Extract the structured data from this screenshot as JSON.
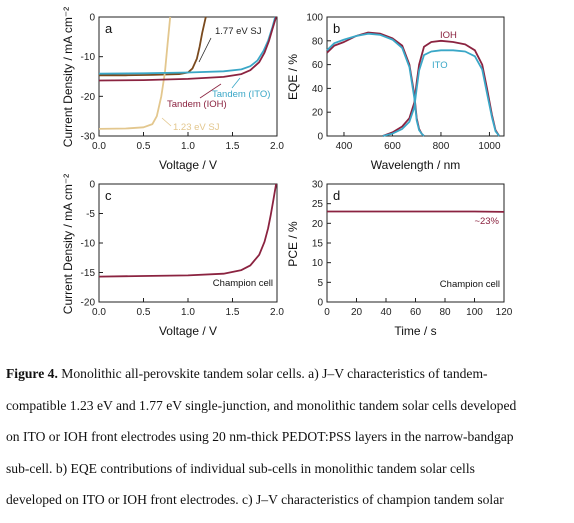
{
  "figure": {
    "caption_label": "Figure 4.",
    "caption_lines": [
      "Monolithic all-perovskite tandem solar cells. a) J–V characteristics of tandem-",
      "compatible 1.23 eV and 1.77 eV single-junction, and monolithic tandem solar cells developed",
      "on ITO or IOH front electrodes using 20 nm-thick PEDOT:PSS layers in the narrow-bandgap",
      "sub-cell. b) EQE contributions of individual sub-cells in monolithic tandem solar cells",
      "developed on ITO or IOH front electrodes. c) J–V characteristics of champion tandem solar"
    ]
  },
  "colors": {
    "ioh": "#8b2340",
    "ito": "#3aa7c7",
    "sj177": "#7a4a1e",
    "sj123": "#e3c78e",
    "axis": "#222222"
  },
  "chart_data": [
    {
      "panel": "a",
      "type": "line",
      "xlabel": "Voltage / V",
      "ylabel": "Current Density / mA cm⁻²",
      "xlim": [
        0,
        2
      ],
      "ylim": [
        -30,
        0
      ],
      "xticks": [
        "0.0",
        "0.5",
        "1.0",
        "1.5",
        "2.0"
      ],
      "yticks": [
        "0",
        "-10",
        "-20",
        "-30"
      ],
      "series": [
        {
          "name": "1.77 eV SJ",
          "color_key": "sj177",
          "x": [
            0,
            0.3,
            0.6,
            0.9,
            1.0,
            1.05,
            1.1,
            1.13,
            1.16,
            1.2
          ],
          "y": [
            -14.7,
            -14.7,
            -14.6,
            -14.4,
            -14.0,
            -13.0,
            -10.5,
            -7.5,
            -4,
            0
          ]
        },
        {
          "name": "1.23 eV SJ",
          "color_key": "sj123",
          "x": [
            0,
            0.3,
            0.5,
            0.6,
            0.65,
            0.7,
            0.74,
            0.77,
            0.8
          ],
          "y": [
            -28.2,
            -28.1,
            -27.8,
            -27,
            -25,
            -20,
            -14,
            -7,
            0
          ]
        },
        {
          "name": "Tandem (ITO)",
          "color_key": "ito",
          "x": [
            0,
            0.5,
            1.0,
            1.4,
            1.6,
            1.7,
            1.78,
            1.85,
            1.9,
            1.95,
            1.98
          ],
          "y": [
            -14.3,
            -14.2,
            -14,
            -13.7,
            -13.2,
            -12.4,
            -11,
            -8.5,
            -6,
            -2.5,
            0
          ]
        },
        {
          "name": "Tandem (IOH)",
          "color_key": "ioh",
          "x": [
            0,
            0.5,
            1.0,
            1.4,
            1.6,
            1.7,
            1.8,
            1.86,
            1.91,
            1.95,
            1.99
          ],
          "y": [
            -16,
            -15.9,
            -15.6,
            -15.1,
            -14.4,
            -13.4,
            -11.4,
            -9,
            -6,
            -3,
            0
          ]
        }
      ],
      "annotations": [
        "1.77 eV SJ",
        "1.23 eV SJ",
        "Tandem (ITO)",
        "Tandem (IOH)"
      ]
    },
    {
      "panel": "b",
      "type": "line",
      "xlabel": "Wavelength / nm",
      "ylabel": "EQE / %",
      "xlim": [
        330,
        1060
      ],
      "ylim": [
        0,
        100
      ],
      "xticks": [
        "400",
        "600",
        "800",
        "1000"
      ],
      "yticks": [
        "0",
        "20",
        "40",
        "60",
        "80",
        "100"
      ],
      "series": [
        {
          "name": "IOH",
          "color_key": "ioh",
          "group": "top",
          "x": [
            330,
            360,
            400,
            450,
            500,
            550,
            600,
            640,
            670,
            690,
            700,
            710,
            720,
            730
          ],
          "y": [
            70,
            76,
            79,
            84,
            87,
            86,
            82,
            76,
            60,
            35,
            15,
            6,
            2,
            0
          ]
        },
        {
          "name": "IOH",
          "color_key": "ioh",
          "group": "bottom",
          "x": [
            560,
            600,
            640,
            670,
            690,
            700,
            710,
            730,
            760,
            800,
            850,
            900,
            940,
            970,
            990,
            1010,
            1025,
            1040
          ],
          "y": [
            0,
            3,
            8,
            15,
            28,
            45,
            60,
            75,
            79,
            80,
            79,
            77,
            72,
            60,
            40,
            18,
            5,
            0
          ]
        },
        {
          "name": "ITO",
          "color_key": "ito",
          "group": "top",
          "x": [
            330,
            360,
            400,
            450,
            500,
            550,
            600,
            640,
            670,
            690,
            700,
            710,
            720,
            730
          ],
          "y": [
            72,
            78,
            81,
            84,
            86,
            85,
            81,
            74,
            58,
            32,
            13,
            5,
            2,
            0
          ]
        },
        {
          "name": "ITO",
          "color_key": "ito",
          "group": "bottom",
          "x": [
            560,
            600,
            640,
            670,
            690,
            700,
            710,
            730,
            760,
            800,
            850,
            900,
            940,
            970,
            990,
            1010,
            1025,
            1040
          ],
          "y": [
            0,
            2,
            6,
            12,
            24,
            40,
            55,
            68,
            71,
            72,
            72,
            71,
            67,
            56,
            36,
            16,
            4,
            0
          ]
        }
      ],
      "annotations": [
        "IOH",
        "ITO"
      ]
    },
    {
      "panel": "c",
      "type": "line",
      "xlabel": "Voltage / V",
      "ylabel": "Current Density / mA cm⁻²",
      "xlim": [
        0,
        2
      ],
      "ylim": [
        -20,
        0
      ],
      "xticks": [
        "0.0",
        "0.5",
        "1.0",
        "1.5",
        "2.0"
      ],
      "yticks": [
        "0",
        "-5",
        "-10",
        "-15",
        "-20"
      ],
      "series": [
        {
          "name": "Champion cell",
          "color_key": "ioh",
          "x": [
            0,
            0.5,
            1.0,
            1.4,
            1.6,
            1.7,
            1.8,
            1.86,
            1.9,
            1.93,
            1.96,
            1.99
          ],
          "y": [
            -15.7,
            -15.6,
            -15.5,
            -15.2,
            -14.6,
            -13.8,
            -12.0,
            -9.8,
            -7.5,
            -5.2,
            -2.7,
            0
          ]
        }
      ],
      "annotations": [
        "Champion cell"
      ]
    },
    {
      "panel": "d",
      "type": "line",
      "xlabel": "Time / s",
      "ylabel": "PCE / %",
      "xlim": [
        0,
        120
      ],
      "ylim": [
        0,
        30
      ],
      "xticks": [
        "0",
        "20",
        "40",
        "60",
        "80",
        "100",
        "120"
      ],
      "yticks": [
        "0",
        "5",
        "10",
        "15",
        "20",
        "25",
        "30"
      ],
      "series": [
        {
          "name": "Champion cell",
          "color_key": "ioh",
          "x": [
            0,
            20,
            40,
            60,
            80,
            100,
            120
          ],
          "y": [
            23,
            23,
            23,
            23,
            23,
            23,
            22.9
          ]
        }
      ],
      "annotations": [
        "~23%",
        "Champion cell"
      ]
    }
  ]
}
